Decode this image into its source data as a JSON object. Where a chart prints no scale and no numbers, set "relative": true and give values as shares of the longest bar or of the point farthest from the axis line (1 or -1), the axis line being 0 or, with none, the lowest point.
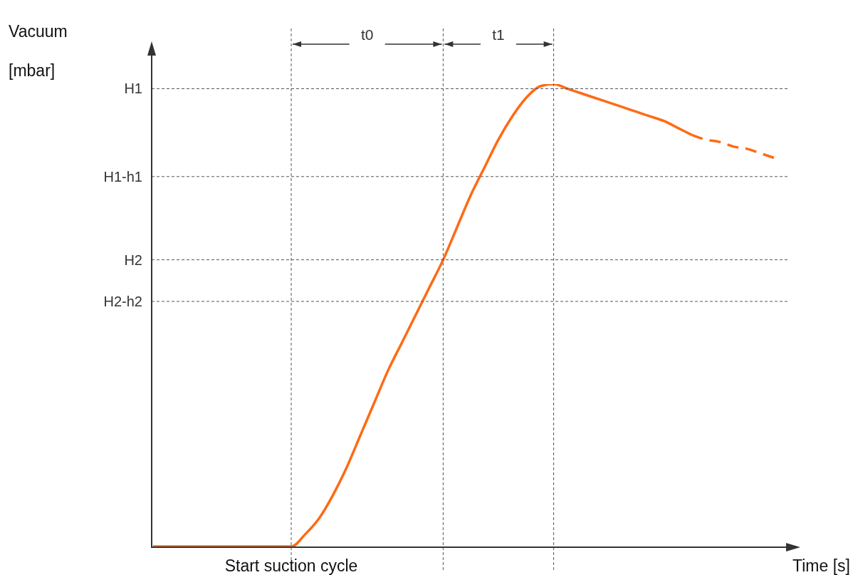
{
  "chart_data": {
    "type": "line",
    "relative": true,
    "xlabel": "Time [s]",
    "ylabel": "Vacuum [mbar]",
    "categories": [
      null,
      null,
      null,
      null,
      null,
      null,
      null,
      null,
      null,
      null,
      null,
      null,
      null,
      null,
      null,
      null,
      null,
      null,
      null,
      null,
      null,
      null,
      null,
      null,
      null,
      null,
      null,
      null,
      null,
      null,
      null,
      null,
      null,
      null,
      null,
      null,
      null,
      null,
      null,
      null,
      null,
      null,
      null,
      null,
      null,
      null
    ],
    "series": [
      {
        "color": "#ff6a13",
        "line_style": "solid",
        "values": [
          0,
          0,
          0,
          0,
          0,
          0,
          0,
          0,
          0,
          0,
          0,
          0.026,
          0.06,
          0.11,
          0.17,
          0.24,
          0.31,
          0.38,
          0.44,
          0.5,
          0.56,
          0.62,
          0.69,
          0.76,
          0.82,
          0.88,
          0.93,
          0.97,
          0.995,
          1.0,
          0.99,
          0.98,
          0.97,
          0.96,
          0.95,
          0.94,
          0.93,
          0.92,
          0.905,
          0.89,
          null,
          null,
          null,
          null,
          null,
          null
        ]
      },
      {
        "color": "#ff6a13",
        "line_style": "dashed",
        "values": [
          null,
          null,
          null,
          null,
          null,
          null,
          null,
          null,
          null,
          null,
          null,
          null,
          null,
          null,
          null,
          null,
          null,
          null,
          null,
          null,
          null,
          null,
          null,
          null,
          null,
          null,
          null,
          null,
          null,
          null,
          null,
          null,
          null,
          null,
          null,
          null,
          null,
          null,
          null,
          0.89,
          0.88,
          0.875,
          0.865,
          0.86,
          0.85,
          0.84
        ]
      }
    ],
    "ref_lines": [
      {
        "axis": "y",
        "value": 0.99,
        "label": "H1",
        "color": "#555555",
        "line_style": "dashed"
      },
      {
        "axis": "y",
        "value": 0.8,
        "label": "H1-h1",
        "color": "#555555",
        "line_style": "dashed"
      },
      {
        "axis": "y",
        "value": 0.62,
        "label": "H2",
        "color": "#555555",
        "line_style": "dashed"
      },
      {
        "axis": "y",
        "value": 0.53,
        "label": "H2-h2",
        "color": "#555555",
        "line_style": "dashed"
      }
    ],
    "grid": true,
    "annotations": [
      "Start suction cycle",
      "t0",
      "t1"
    ]
  }
}
